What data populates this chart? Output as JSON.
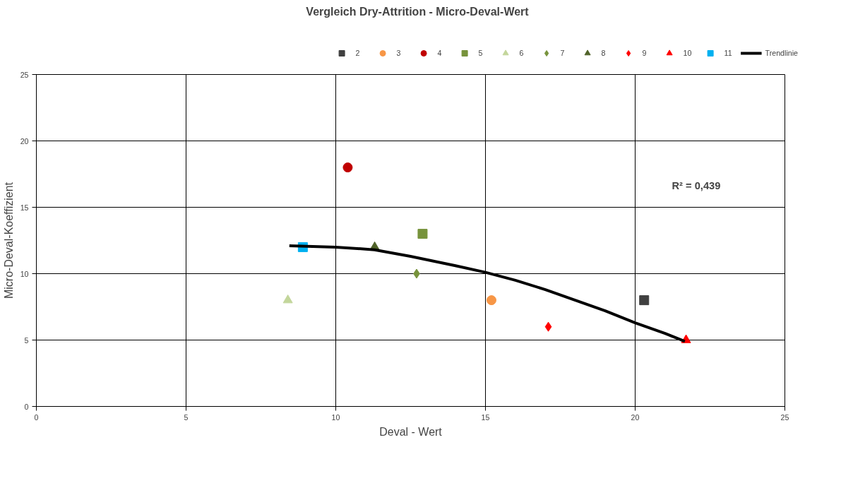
{
  "chart_data": {
    "type": "scatter",
    "title": "Vergleich Dry-Attrition - Micro-Deval-Wert",
    "xlabel": "Deval - Wert",
    "ylabel": "Micro-Deval-Koeffizient",
    "xlim": [
      0,
      25
    ],
    "ylim": [
      0,
      25
    ],
    "xticks": [
      0,
      5,
      10,
      15,
      20,
      25
    ],
    "yticks": [
      0,
      5,
      10,
      15,
      20,
      25
    ],
    "grid": true,
    "legend": "top",
    "annotations": [
      "R² = 0,439"
    ],
    "series": [
      {
        "name": "2",
        "color": "#404040",
        "marker": "square",
        "x": [
          20.3
        ],
        "values": [
          8
        ]
      },
      {
        "name": "3",
        "color": "#f79646",
        "marker": "circle",
        "x": [
          15.2
        ],
        "values": [
          8
        ]
      },
      {
        "name": "4",
        "color": "#c00000",
        "marker": "circle",
        "x": [
          10.4
        ],
        "values": [
          18
        ]
      },
      {
        "name": "5",
        "color": "#77933c",
        "marker": "square",
        "x": [
          12.9
        ],
        "values": [
          13
        ]
      },
      {
        "name": "6",
        "color": "#c3d69b",
        "marker": "triangle",
        "x": [
          8.4
        ],
        "values": [
          8
        ]
      },
      {
        "name": "7",
        "color": "#77933c",
        "marker": "diamond",
        "x": [
          12.7
        ],
        "values": [
          10
        ]
      },
      {
        "name": "8",
        "color": "#4f6228",
        "marker": "triangle",
        "x": [
          11.3
        ],
        "values": [
          12
        ]
      },
      {
        "name": "9",
        "color": "#ff0000",
        "marker": "diamond",
        "x": [
          17.1
        ],
        "values": [
          6
        ]
      },
      {
        "name": "10",
        "color": "#ff0000",
        "marker": "triangle",
        "x": [
          21.7
        ],
        "values": [
          5
        ]
      },
      {
        "name": "11",
        "color": "#00b0f0",
        "marker": "square",
        "x": [
          8.9
        ],
        "values": [
          12
        ]
      },
      {
        "name": "Trendlinie",
        "type": "line",
        "color": "#000000",
        "marker": "none",
        "x": [
          8.45,
          10,
          11.3,
          12.5,
          14,
          15,
          16,
          17,
          18,
          19,
          20,
          21,
          21.66
        ],
        "values": [
          12.1,
          12.0,
          11.8,
          11.3,
          10.6,
          10.1,
          9.5,
          8.8,
          8.0,
          7.2,
          6.3,
          5.5,
          4.9
        ]
      }
    ]
  }
}
